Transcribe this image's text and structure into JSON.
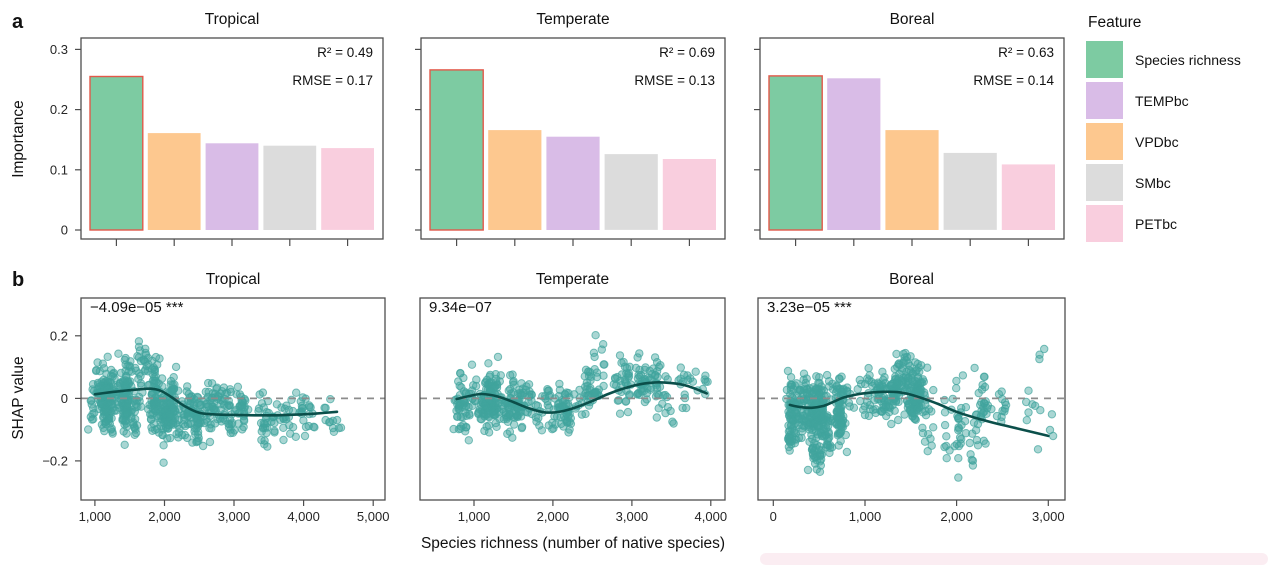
{
  "figure": {
    "panel_a_letter": "a",
    "panel_b_letter": "b"
  },
  "legend": {
    "title": "Feature",
    "items": [
      {
        "label": "Species richness",
        "color": "#7dcba2"
      },
      {
        "label": "TEMPbc",
        "color": "#d9bce7"
      },
      {
        "label": "VPDbc",
        "color": "#fdc88f"
      },
      {
        "label": "SMbc",
        "color": "#dcdcdc"
      },
      {
        "label": "PETbc",
        "color": "#f9cede"
      }
    ]
  },
  "palette": {
    "Species richness": "#7dcba2",
    "TEMPbc": "#d9bce7",
    "VPDbc": "#fdc88f",
    "SMbc": "#dcdcdc",
    "PETbc": "#f9cede"
  },
  "colors": {
    "highlight_stroke": "#e25849",
    "scatter_point": "#40a49d",
    "trend_line": "#0b4f4a",
    "axis": "#4d4d4d",
    "dashed_zero": "#8c8c8c",
    "tick_text": "#262626"
  },
  "chart_data": [
    {
      "id": "importance-tropical",
      "type": "bar",
      "row": "a",
      "slot": 0,
      "title": "Tropical",
      "r2_text": "R² = 0.49",
      "rmse_text": "RMSE = 0.17",
      "ylabel": "Importance",
      "categories": [
        "Species richness",
        "VPDbc",
        "TEMPbc",
        "SMbc",
        "PETbc"
      ],
      "values": [
        0.255,
        0.161,
        0.144,
        0.14,
        0.136
      ],
      "highlight_index": 0,
      "ylim": [
        -0.015,
        0.319
      ],
      "yticks": [
        0,
        0.1,
        0.2,
        0.3
      ],
      "ytick_labels": [
        "0",
        "0.1",
        "0.2",
        "0.3"
      ],
      "show_y_labels": true
    },
    {
      "id": "importance-temperate",
      "type": "bar",
      "row": "a",
      "slot": 1,
      "title": "Temperate",
      "r2_text": "R² = 0.69",
      "rmse_text": "RMSE = 0.13",
      "ylabel": "Importance",
      "categories": [
        "Species richness",
        "VPDbc",
        "TEMPbc",
        "SMbc",
        "PETbc"
      ],
      "values": [
        0.266,
        0.166,
        0.155,
        0.126,
        0.118
      ],
      "highlight_index": 0,
      "ylim": [
        -0.015,
        0.319
      ],
      "yticks": [
        0,
        0.1,
        0.2,
        0.3
      ],
      "ytick_labels": [
        "0",
        "0.1",
        "0.2",
        "0.3"
      ],
      "show_y_labels": false
    },
    {
      "id": "importance-boreal",
      "type": "bar",
      "row": "a",
      "slot": 2,
      "title": "Boreal",
      "r2_text": "R² = 0.63",
      "rmse_text": "RMSE = 0.14",
      "ylabel": "Importance",
      "categories": [
        "Species richness",
        "TEMPbc",
        "VPDbc",
        "SMbc",
        "PETbc"
      ],
      "values": [
        0.256,
        0.252,
        0.166,
        0.128,
        0.109
      ],
      "highlight_index": 0,
      "ylim": [
        -0.015,
        0.319
      ],
      "yticks": [
        0,
        0.1,
        0.2,
        0.3
      ],
      "ytick_labels": [
        "0",
        "0.1",
        "0.2",
        "0.3"
      ],
      "show_y_labels": false
    },
    {
      "id": "shap-tropical",
      "type": "scatter",
      "row": "b",
      "slot": 0,
      "title": "Tropical",
      "annotation": "−4.09e−05 ***",
      "ylabel": "SHAP value",
      "xlabel": "Species richness (number of native species)",
      "xlim": [
        800,
        5170
      ],
      "xticks": [
        1000,
        2000,
        3000,
        4000,
        5000
      ],
      "xtick_labels": [
        "1,000",
        "2,000",
        "3,000",
        "4,000",
        "5,000"
      ],
      "ylim": [
        -0.325,
        0.321
      ],
      "yticks": [
        0.2,
        0,
        -0.2
      ],
      "ytick_labels": [
        "0.2",
        "0",
        "−0.2"
      ],
      "show_y_labels": true,
      "zero_line": 0,
      "seed": 11,
      "trend": [
        [
          1000,
          0.013
        ],
        [
          1200,
          0.019
        ],
        [
          1400,
          0.024
        ],
        [
          1600,
          0.028
        ],
        [
          1800,
          0.031
        ],
        [
          1950,
          0.024
        ],
        [
          2100,
          0.004
        ],
        [
          2300,
          -0.026
        ],
        [
          2500,
          -0.046
        ],
        [
          2700,
          -0.051
        ],
        [
          3000,
          -0.053
        ],
        [
          3300,
          -0.054
        ],
        [
          3600,
          -0.054
        ],
        [
          3900,
          -0.052
        ],
        [
          4200,
          -0.048
        ],
        [
          4480,
          -0.043
        ]
      ],
      "scatter_clusters": [
        {
          "x0": 950,
          "x1": 1900,
          "cols": 50,
          "max_pts": 12,
          "y_mu": 0.0,
          "y_sd": 0.07
        },
        {
          "x0": 1600,
          "x1": 1850,
          "cols": 4,
          "max_pts": 8,
          "y_mu": 0.12,
          "y_sd": 0.04
        },
        {
          "x0": 1900,
          "x1": 2600,
          "cols": 32,
          "max_pts": 9,
          "y_mu": -0.035,
          "y_sd": 0.065
        },
        {
          "x0": 2600,
          "x1": 3600,
          "cols": 28,
          "max_pts": 6,
          "y_mu": -0.045,
          "y_sd": 0.055
        },
        {
          "x0": 3600,
          "x1": 4500,
          "cols": 16,
          "max_pts": 4,
          "y_mu": -0.05,
          "y_sd": 0.06
        }
      ]
    },
    {
      "id": "shap-temperate",
      "type": "scatter",
      "row": "b",
      "slot": 1,
      "title": "Temperate",
      "annotation": "9.34e−07",
      "ylabel": "SHAP value",
      "xlabel": "Species richness (number of native species)",
      "xlim": [
        316,
        4180
      ],
      "xticks": [
        1000,
        2000,
        3000,
        4000
      ],
      "xtick_labels": [
        "1,000",
        "2,000",
        "3,000",
        "4,000"
      ],
      "ylim": [
        -0.325,
        0.321
      ],
      "yticks": [
        0.2,
        0,
        -0.2
      ],
      "ytick_labels": [
        "0.2",
        "0",
        "−0.2"
      ],
      "show_y_labels": false,
      "zero_line": 0,
      "seed": 22,
      "trend": [
        [
          780,
          -0.002
        ],
        [
          950,
          0.008
        ],
        [
          1100,
          0.014
        ],
        [
          1300,
          0.006
        ],
        [
          1500,
          -0.012
        ],
        [
          1700,
          -0.032
        ],
        [
          1900,
          -0.045
        ],
        [
          2100,
          -0.042
        ],
        [
          2300,
          -0.028
        ],
        [
          2500,
          -0.008
        ],
        [
          2700,
          0.014
        ],
        [
          2900,
          0.032
        ],
        [
          3100,
          0.045
        ],
        [
          3300,
          0.051
        ],
        [
          3500,
          0.049
        ],
        [
          3700,
          0.04
        ],
        [
          3950,
          0.016
        ]
      ],
      "scatter_clusters": [
        {
          "x0": 780,
          "x1": 1600,
          "cols": 42,
          "max_pts": 11,
          "y_mu": -0.01,
          "y_sd": 0.06
        },
        {
          "x0": 1600,
          "x1": 2400,
          "cols": 26,
          "max_pts": 6,
          "y_mu": -0.03,
          "y_sd": 0.04
        },
        {
          "x0": 2400,
          "x1": 3350,
          "cols": 26,
          "max_pts": 7,
          "y_mu": 0.045,
          "y_sd": 0.055
        },
        {
          "x0": 2500,
          "x1": 2700,
          "cols": 2,
          "max_pts": 4,
          "y_mu": 0.15,
          "y_sd": 0.03
        },
        {
          "x0": 3350,
          "x1": 4000,
          "cols": 10,
          "max_pts": 4,
          "y_mu": 0.0,
          "y_sd": 0.07
        }
      ]
    },
    {
      "id": "shap-boreal",
      "type": "scatter",
      "row": "b",
      "slot": 2,
      "title": "Boreal",
      "annotation": "3.23e−05 ***",
      "ylabel": "SHAP value",
      "xlabel": "Species richness (number of native species)",
      "xlim": [
        -167,
        3182
      ],
      "xticks": [
        0,
        1000,
        2000,
        3000
      ],
      "xtick_labels": [
        "0",
        "1,000",
        "2,000",
        "3,000"
      ],
      "ylim": [
        -0.325,
        0.321
      ],
      "yticks": [
        0.2,
        0,
        -0.2
      ],
      "ytick_labels": [
        "0.2",
        "0",
        "−0.2"
      ],
      "show_y_labels": false,
      "zero_line": 0,
      "seed": 33,
      "trend": [
        [
          180,
          -0.021
        ],
        [
          300,
          -0.028
        ],
        [
          420,
          -0.03
        ],
        [
          550,
          -0.024
        ],
        [
          650,
          -0.012
        ],
        [
          760,
          0.002
        ],
        [
          900,
          0.012
        ],
        [
          1050,
          0.018
        ],
        [
          1200,
          0.021
        ],
        [
          1350,
          0.02
        ],
        [
          1500,
          0.012
        ],
        [
          1650,
          -0.002
        ],
        [
          1800,
          -0.018
        ],
        [
          2000,
          -0.043
        ],
        [
          2200,
          -0.062
        ],
        [
          2400,
          -0.078
        ],
        [
          2600,
          -0.092
        ],
        [
          2800,
          -0.106
        ],
        [
          3000,
          -0.12
        ]
      ],
      "scatter_clusters": [
        {
          "x0": 180,
          "x1": 800,
          "cols": 40,
          "max_pts": 13,
          "y_mu": -0.045,
          "y_sd": 0.075
        },
        {
          "x0": 350,
          "x1": 800,
          "cols": 6,
          "max_pts": 10,
          "y_mu": -0.16,
          "y_sd": 0.05
        },
        {
          "x0": 800,
          "x1": 1650,
          "cols": 40,
          "max_pts": 11,
          "y_mu": 0.015,
          "y_sd": 0.05
        },
        {
          "x0": 1350,
          "x1": 1550,
          "cols": 5,
          "max_pts": 8,
          "y_mu": 0.1,
          "y_sd": 0.045
        },
        {
          "x0": 1650,
          "x1": 2400,
          "cols": 20,
          "max_pts": 5,
          "y_mu": -0.1,
          "y_sd": 0.095
        },
        {
          "x0": 2400,
          "x1": 3050,
          "cols": 9,
          "max_pts": 2,
          "y_mu": -0.05,
          "y_sd": 0.055
        },
        {
          "x0": 2900,
          "x1": 3000,
          "cols": 1,
          "max_pts": 2,
          "y_mu": 0.12,
          "y_sd": 0.03
        }
      ]
    }
  ]
}
